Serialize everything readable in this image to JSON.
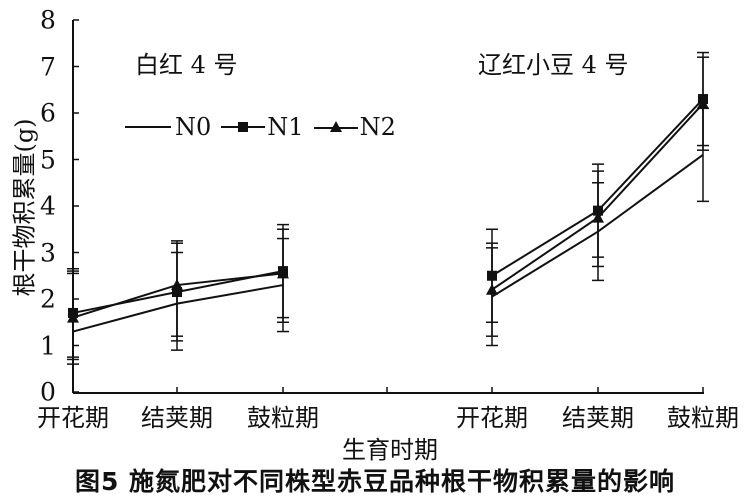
{
  "figure": {
    "caption": "图5   施氮肥对不同株型赤豆品种根干物积累量的影响",
    "xlabel": "生育时期",
    "ylabel": "根干物积累量(g)",
    "panels": [
      {
        "title": "白红 4 号"
      },
      {
        "title": "辽红小豆 4 号"
      }
    ],
    "legend": [
      {
        "label": "N0",
        "marker": "none"
      },
      {
        "label": "N1",
        "marker": "square"
      },
      {
        "label": "N2",
        "marker": "triangle"
      }
    ],
    "x_categories": [
      "开花期",
      "结荚期",
      "鼓粒期",
      "开花期",
      "结荚期",
      "鼓粒期"
    ],
    "y_ticks": [
      "0",
      "1",
      "2",
      "3",
      "4",
      "5",
      "6",
      "7",
      "8"
    ]
  },
  "chart_data": {
    "type": "line",
    "title": "施氮肥对不同株型赤豆品种根干物积累量的影响",
    "figure_label": "图5",
    "xlabel": "生育时期",
    "ylabel": "根干物积累量(g)",
    "ylim": [
      0,
      8
    ],
    "grid": false,
    "legend_position": "upper left (inside)",
    "panels": [
      {
        "name": "白红 4 号",
        "categories": [
          "开花期",
          "结荚期",
          "鼓粒期"
        ],
        "series": [
          {
            "name": "N0",
            "marker": "none",
            "values": [
              1.3,
              1.9,
              2.3
            ],
            "error_low": [
              0.7,
              0.9,
              1.3
            ],
            "error_high": [
              2.6,
              3.2,
              3.5
            ]
          },
          {
            "name": "N1",
            "marker": "square",
            "values": [
              1.7,
              2.15,
              2.6
            ],
            "error_low": [
              0.75,
              1.1,
              1.5
            ],
            "error_high": [
              2.65,
              3.25,
              3.6
            ]
          },
          {
            "name": "N2",
            "marker": "triangle",
            "values": [
              1.6,
              2.3,
              2.55
            ],
            "error_low": [
              0.6,
              1.2,
              1.6
            ],
            "error_high": [
              2.55,
              3.0,
              3.3
            ]
          }
        ]
      },
      {
        "name": "辽红小豆 4 号",
        "categories": [
          "开花期",
          "结荚期",
          "鼓粒期"
        ],
        "series": [
          {
            "name": "N0",
            "marker": "none",
            "values": [
              2.05,
              3.45,
              5.1
            ],
            "error_low": [
              1.0,
              2.4,
              4.1
            ],
            "error_high": [
              3.1,
              4.5,
              6.1
            ]
          },
          {
            "name": "N1",
            "marker": "square",
            "values": [
              2.5,
              3.9,
              6.3
            ],
            "error_low": [
              1.5,
              2.9,
              5.3
            ],
            "error_high": [
              3.5,
              4.9,
              7.3
            ]
          },
          {
            "name": "N2",
            "marker": "triangle",
            "values": [
              2.2,
              3.75,
              6.2
            ],
            "error_low": [
              1.2,
              2.7,
              5.2
            ],
            "error_high": [
              3.2,
              4.75,
              7.2
            ]
          }
        ]
      }
    ]
  }
}
